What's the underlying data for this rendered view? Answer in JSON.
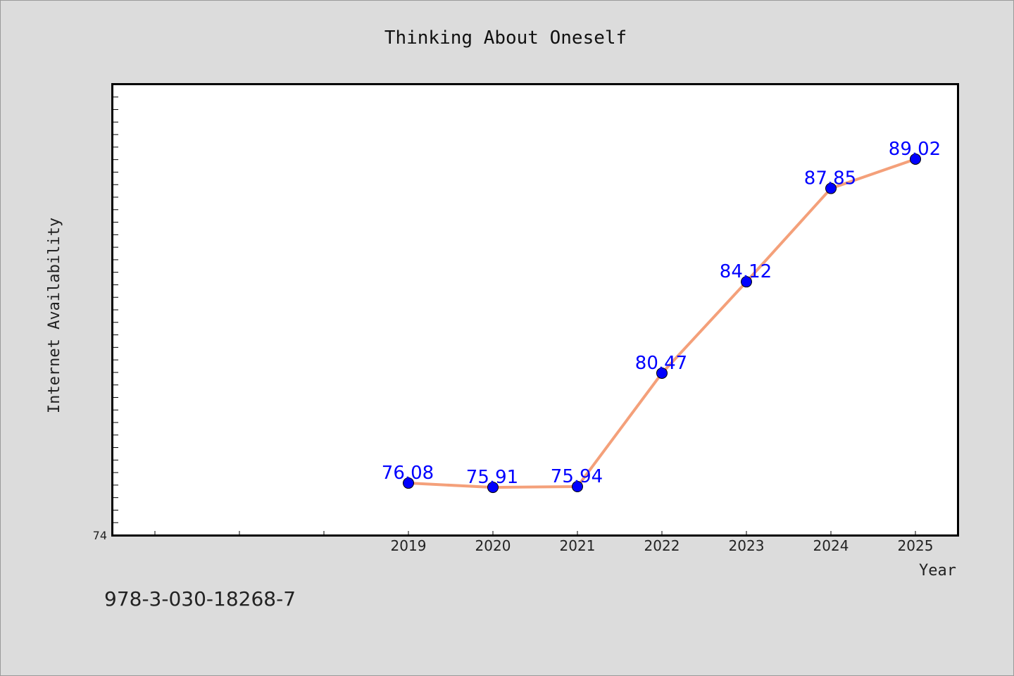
{
  "chart_data": {
    "type": "line",
    "title": "Thinking About Oneself",
    "xlabel": "Year",
    "ylabel": "Internet Availability",
    "x": [
      "2019",
      "2020",
      "2021",
      "2022",
      "2023",
      "2024",
      "2025"
    ],
    "values": [
      76.08,
      75.91,
      75.94,
      80.47,
      84.12,
      87.85,
      89.02
    ],
    "value_labels": [
      "76.08",
      "75.91",
      "75.94",
      "80.47",
      "84.12",
      "87.85",
      "89.02"
    ],
    "y_tick_labels": [
      "74"
    ],
    "ylim": [
      74,
      92
    ],
    "x_axis_extends_left_periods": 3,
    "grid": false,
    "line_color": "#f4a07a",
    "marker_color": "#0000ff",
    "label_color": "#0000ff",
    "background_color": "#dcdcdc",
    "plot_background_color": "#ffffff"
  },
  "footer": {
    "isbn": "978-3-030-18268-7"
  }
}
